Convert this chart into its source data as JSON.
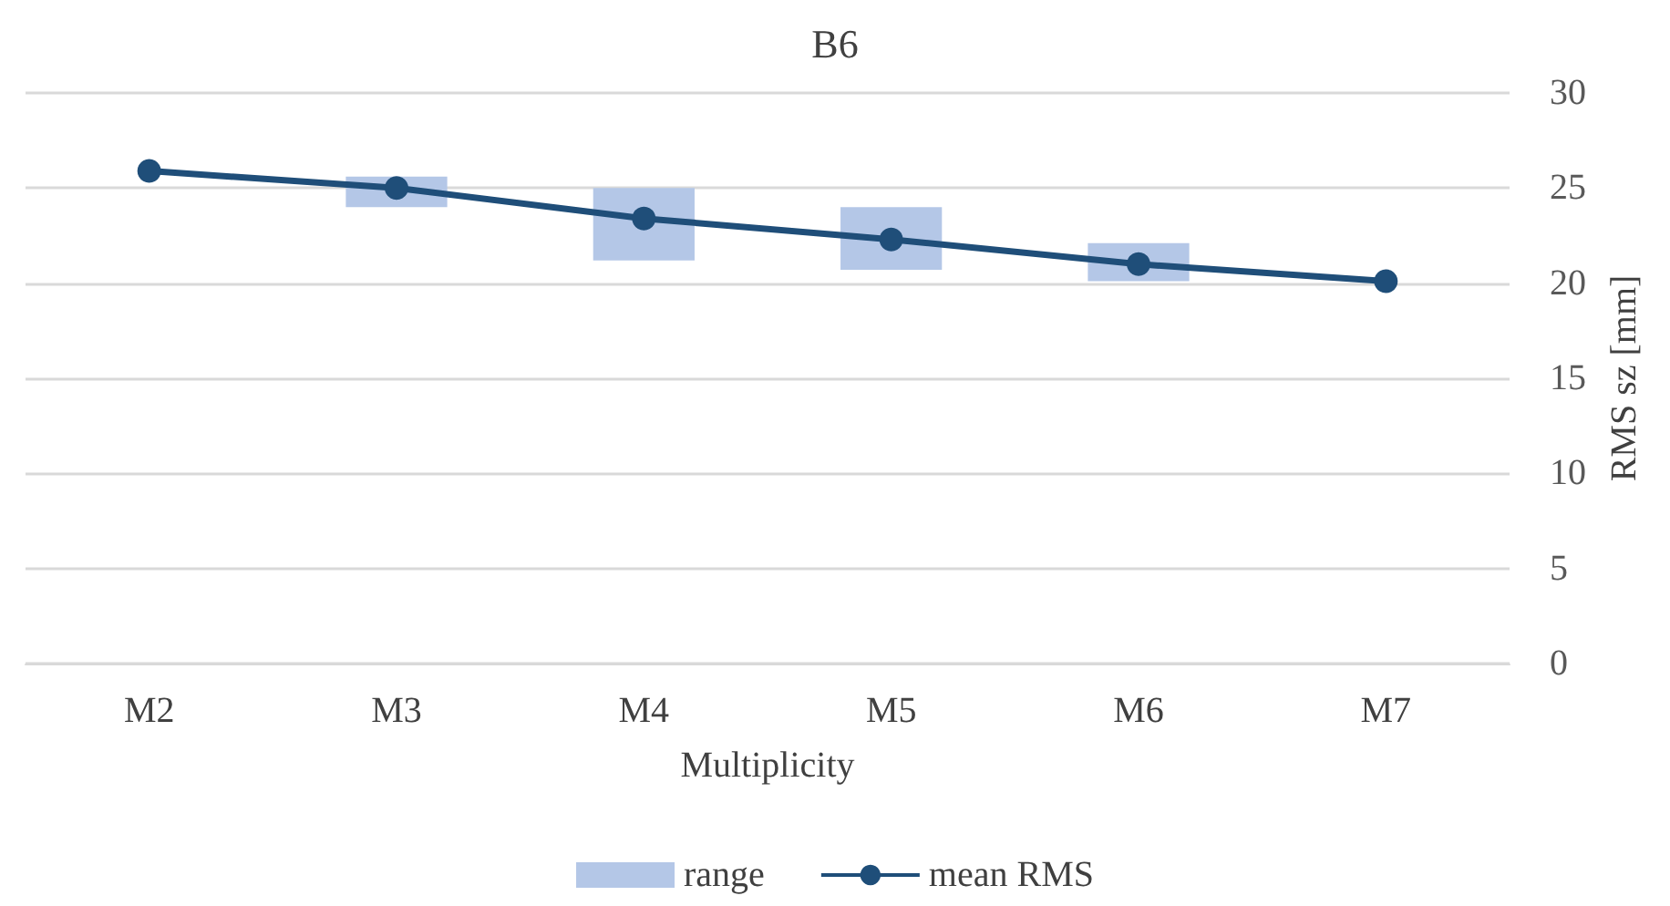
{
  "chart_data": {
    "type": "bar",
    "title": "B6",
    "xlabel": "Multiplicity",
    "ylabel": "RMS sz [mm]",
    "categories": [
      "M2",
      "M3",
      "M4",
      "M5",
      "M6",
      "M7"
    ],
    "series": [
      {
        "name": "range",
        "color": "#b4c7e7",
        "base": [
          null,
          24.0,
          21.2,
          20.7,
          20.1,
          null
        ],
        "values": [
          null,
          1.6,
          3.8,
          3.3,
          2.0,
          null
        ]
      },
      {
        "name": "mean RMS",
        "type": "line",
        "color": "#1f4e79",
        "marker": "circle",
        "line_style": "solid",
        "values": [
          25.9,
          25.0,
          23.4,
          22.3,
          21.0,
          20.1
        ]
      }
    ],
    "ylim": [
      0,
      30
    ],
    "yticks": [
      0,
      5,
      10,
      15,
      20,
      25,
      30
    ],
    "grid": "y",
    "legend": "bottom"
  }
}
